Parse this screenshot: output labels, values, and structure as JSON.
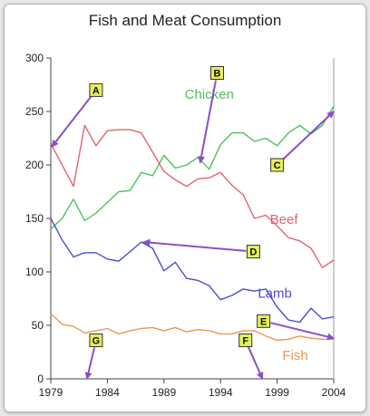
{
  "chart_data": {
    "type": "line",
    "title": "Fish and Meat Consumption",
    "xlabel": "",
    "ylabel": "",
    "xlim": [
      1979,
      2004
    ],
    "ylim": [
      0,
      300
    ],
    "x_ticks": [
      "1979",
      "1984",
      "1989",
      "1994",
      "1999",
      "2004"
    ],
    "y_ticks": [
      "0",
      "50",
      "100",
      "150",
      "200",
      "250",
      "300"
    ],
    "grid": false,
    "legend": "inline labels next to lines",
    "series": [
      {
        "name": "Chicken",
        "color": "#4cc25a",
        "label_at": [
          1993.0,
          262
        ],
        "x": [
          1979,
          1980,
          1981,
          1982,
          1983,
          1984,
          1985,
          1986,
          1987,
          1988,
          1989,
          1990,
          1991,
          1992,
          1993,
          1994,
          1995,
          1996,
          1997,
          1998,
          1999,
          2000,
          2001,
          2002,
          2003,
          2004
        ],
        "y": [
          140,
          150,
          168,
          148,
          155,
          165,
          175,
          176,
          193,
          190,
          209,
          197,
          200,
          207,
          196,
          219,
          230,
          230,
          222,
          225,
          218,
          230,
          237,
          229,
          237,
          255
        ]
      },
      {
        "name": "Beef",
        "color": "#e06470",
        "label_at": [
          1999.6,
          145
        ],
        "x": [
          1979,
          1980,
          1981,
          1982,
          1983,
          1984,
          1985,
          1986,
          1987,
          1988,
          1989,
          1990,
          1991,
          1992,
          1993,
          1994,
          1995,
          1996,
          1997,
          1998,
          1999,
          2000,
          2001,
          2002,
          2003,
          2004
        ],
        "y": [
          220,
          200,
          180,
          237,
          218,
          232,
          233,
          233,
          230,
          212,
          194,
          186,
          180,
          187,
          188,
          193,
          181,
          172,
          150,
          153,
          143,
          132,
          129,
          122,
          104,
          111
        ]
      },
      {
        "name": "Lamb",
        "color": "#4a4dd0",
        "label_at": [
          1998.8,
          76
        ],
        "x": [
          1979,
          1980,
          1981,
          1982,
          1983,
          1984,
          1985,
          1986,
          1987,
          1988,
          1989,
          1990,
          1991,
          1992,
          1993,
          1994,
          1995,
          1996,
          1997,
          1998,
          1999,
          2000,
          2001,
          2002,
          2003,
          2004
        ],
        "y": [
          150,
          130,
          114,
          118,
          118,
          112,
          110,
          119,
          128,
          122,
          101,
          109,
          94,
          92,
          87,
          74,
          78,
          84,
          82,
          84,
          67,
          55,
          53,
          66,
          56,
          58
        ]
      },
      {
        "name": "Fish",
        "color": "#f0964a",
        "label_at": [
          2000.6,
          18
        ],
        "x": [
          1979,
          1980,
          1981,
          1982,
          1983,
          1984,
          1985,
          1986,
          1987,
          1988,
          1989,
          1990,
          1991,
          1992,
          1993,
          1994,
          1995,
          1996,
          1997,
          1998,
          1999,
          2000,
          2001,
          2002,
          2003,
          2004
        ],
        "y": [
          61,
          51,
          49,
          43,
          45,
          47,
          42,
          45,
          47,
          48,
          45,
          48,
          44,
          46,
          45,
          42,
          42,
          45,
          45,
          40,
          36,
          37,
          40,
          38,
          37,
          37
        ]
      }
    ],
    "annotations": [
      {
        "label": "A",
        "box_at": [
          1983.0,
          270
        ],
        "arrow_to": [
          1979.1,
          217
        ]
      },
      {
        "label": "B",
        "box_at": [
          1993.7,
          286
        ],
        "arrow_to": [
          1992.2,
          202
        ]
      },
      {
        "label": "C",
        "box_at": [
          1999.0,
          200
        ],
        "arrow_to": [
          2004.0,
          250
        ]
      },
      {
        "label": "D",
        "box_at": [
          1996.9,
          119
        ],
        "arrow_to": [
          1987.2,
          128
        ]
      },
      {
        "label": "E",
        "box_at": [
          1997.8,
          54
        ],
        "arrow_to": [
          2004.0,
          38
        ]
      },
      {
        "label": "F",
        "box_at": [
          1996.2,
          36
        ],
        "arrow_to": [
          1997.7,
          0
        ]
      },
      {
        "label": "G",
        "box_at": [
          1983.0,
          36
        ],
        "arrow_to": [
          1982.2,
          0
        ]
      }
    ]
  }
}
